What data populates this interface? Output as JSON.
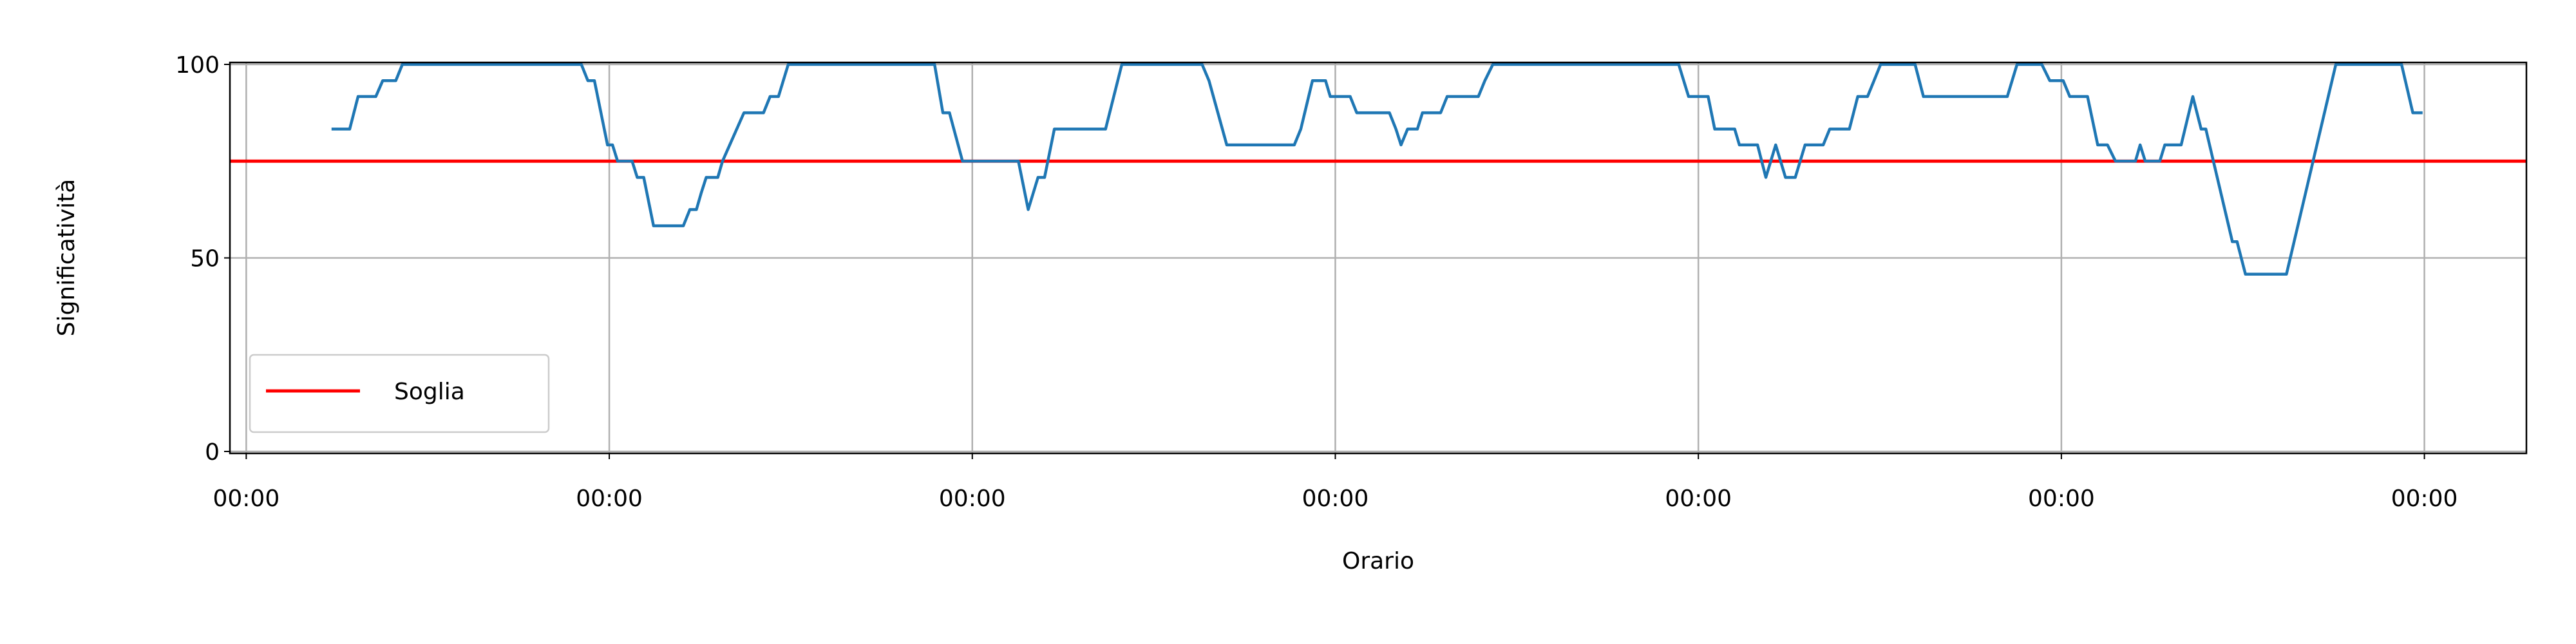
{
  "chart_data": {
    "type": "line",
    "xlabel": "Orario",
    "ylabel": "Significatività",
    "xlim": [
      -0.045,
      6.281
    ],
    "ylim": [
      -0.5,
      100.5
    ],
    "xticks": [
      {
        "value": 0,
        "label": "00:00"
      },
      {
        "value": 1,
        "label": "00:00"
      },
      {
        "value": 2,
        "label": "00:00"
      },
      {
        "value": 3,
        "label": "00:00"
      },
      {
        "value": 4,
        "label": "00:00"
      },
      {
        "value": 5,
        "label": "00:00"
      },
      {
        "value": 6,
        "label": "00:00"
      }
    ],
    "yticks": [
      0,
      50,
      100
    ],
    "grid": true,
    "legend_position": "lower left",
    "series": [
      {
        "color": "#1f77b4",
        "x": [
          0.235,
          0.285,
          0.308,
          0.357,
          0.376,
          0.412,
          0.43,
          0.923,
          0.941,
          0.959,
          0.995,
          1.009,
          1.023,
          1.063,
          1.077,
          1.095,
          1.122,
          1.204,
          1.222,
          1.24,
          1.253,
          1.267,
          1.299,
          1.312,
          1.371,
          1.425,
          1.443,
          1.466,
          1.493,
          1.896,
          1.919,
          1.937,
          1.973,
          2.127,
          2.154,
          2.181,
          2.199,
          2.226,
          2.367,
          2.412,
          2.633,
          2.652,
          2.701,
          2.887,
          2.905,
          2.937,
          2.973,
          2.986,
          3.041,
          3.059,
          3.149,
          3.167,
          3.181,
          3.199,
          3.226,
          3.24,
          3.29,
          3.308,
          3.394,
          3.412,
          3.434,
          3.946,
          3.973,
          4.027,
          4.045,
          4.1,
          4.113,
          4.163,
          4.186,
          4.213,
          4.24,
          4.267,
          4.294,
          4.344,
          4.362,
          4.416,
          4.439,
          4.466,
          4.484,
          4.502,
          4.597,
          4.62,
          4.851,
          4.878,
          4.946,
          4.968,
          5.005,
          5.023,
          5.072,
          5.1,
          5.127,
          5.149,
          5.204,
          5.217,
          5.231,
          5.271,
          5.285,
          5.33,
          5.362,
          5.385,
          5.398,
          5.471,
          5.484,
          5.507,
          5.62,
          5.756,
          5.937,
          5.968,
          5.995
        ],
        "values": [
          83.3,
          83.3,
          91.7,
          91.7,
          95.8,
          95.8,
          100,
          100,
          95.8,
          95.8,
          79.2,
          79.2,
          75,
          75,
          70.8,
          70.8,
          58.3,
          58.3,
          62.5,
          62.5,
          66.7,
          70.8,
          70.8,
          75,
          87.5,
          87.5,
          91.7,
          91.7,
          100,
          100,
          87.5,
          87.5,
          75,
          75,
          62.5,
          70.8,
          70.8,
          83.3,
          83.3,
          100,
          100,
          95.8,
          79.2,
          79.2,
          83.3,
          95.8,
          95.8,
          91.7,
          91.7,
          87.5,
          87.5,
          83.3,
          79.2,
          83.3,
          83.3,
          87.5,
          87.5,
          91.7,
          91.7,
          95.8,
          100,
          100,
          91.7,
          91.7,
          83.3,
          83.3,
          79.2,
          79.2,
          70.8,
          79.2,
          70.8,
          70.8,
          79.2,
          79.2,
          83.3,
          83.3,
          91.7,
          91.7,
          95.8,
          100,
          100,
          91.7,
          91.7,
          100,
          100,
          95.8,
          95.8,
          91.7,
          91.7,
          79.2,
          79.2,
          75,
          75,
          79.2,
          75,
          75,
          79.2,
          79.2,
          91.7,
          83.3,
          83.3,
          54.2,
          54.2,
          45.8,
          45.8,
          100,
          100,
          87.5,
          87.5
        ]
      }
    ],
    "threshold": {
      "name": "Soglia",
      "value": 75,
      "color": "#ff0000"
    }
  }
}
